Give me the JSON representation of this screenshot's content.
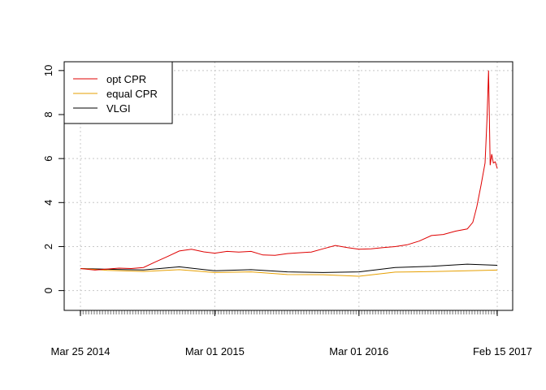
{
  "chart_data": {
    "type": "line",
    "title": "",
    "xlabel": "",
    "ylabel": "",
    "ylim": [
      -0.9,
      10.4
    ],
    "y_ticks": [
      0,
      2,
      4,
      6,
      8,
      10
    ],
    "x_date_range": [
      "2014-03-25",
      "2017-02-15"
    ],
    "x_tick_labels": [
      {
        "date": "2014-03-25",
        "label": "Mar 25 2014"
      },
      {
        "date": "2015-03-01",
        "label": "Mar 01 2015"
      },
      {
        "date": "2016-03-01",
        "label": "Mar 01 2016"
      },
      {
        "date": "2017-02-15",
        "label": "Feb 15 2017"
      }
    ],
    "grid": true,
    "legend_position": "top-left",
    "series": [
      {
        "name": "opt CPR",
        "color": "#DF0000",
        "points": [
          [
            "2014-03-25",
            1.0
          ],
          [
            "2014-05-01",
            0.93
          ],
          [
            "2014-06-01",
            0.98
          ],
          [
            "2014-07-01",
            1.02
          ],
          [
            "2014-08-01",
            1.0
          ],
          [
            "2014-09-01",
            1.05
          ],
          [
            "2014-10-01",
            1.3
          ],
          [
            "2014-11-01",
            1.55
          ],
          [
            "2014-12-01",
            1.8
          ],
          [
            "2015-01-01",
            1.88
          ],
          [
            "2015-02-01",
            1.76
          ],
          [
            "2015-03-01",
            1.7
          ],
          [
            "2015-04-01",
            1.78
          ],
          [
            "2015-05-01",
            1.75
          ],
          [
            "2015-06-01",
            1.78
          ],
          [
            "2015-07-01",
            1.62
          ],
          [
            "2015-08-01",
            1.6
          ],
          [
            "2015-09-01",
            1.68
          ],
          [
            "2015-10-01",
            1.72
          ],
          [
            "2015-11-01",
            1.75
          ],
          [
            "2015-12-01",
            1.9
          ],
          [
            "2016-01-01",
            2.05
          ],
          [
            "2016-02-01",
            1.95
          ],
          [
            "2016-03-01",
            1.88
          ],
          [
            "2016-04-01",
            1.9
          ],
          [
            "2016-05-01",
            1.95
          ],
          [
            "2016-06-01",
            2.0
          ],
          [
            "2016-07-01",
            2.08
          ],
          [
            "2016-08-01",
            2.25
          ],
          [
            "2016-09-01",
            2.5
          ],
          [
            "2016-10-01",
            2.55
          ],
          [
            "2016-11-01",
            2.7
          ],
          [
            "2016-12-01",
            2.8
          ],
          [
            "2016-12-15",
            3.1
          ],
          [
            "2016-12-25",
            3.8
          ],
          [
            "2017-01-05",
            4.8
          ],
          [
            "2017-01-15",
            5.8
          ],
          [
            "2017-01-20",
            7.8
          ],
          [
            "2017-01-24",
            10.0
          ],
          [
            "2017-01-28",
            5.7
          ],
          [
            "2017-02-01",
            6.2
          ],
          [
            "2017-02-05",
            5.8
          ],
          [
            "2017-02-10",
            5.85
          ],
          [
            "2017-02-15",
            5.55
          ]
        ]
      },
      {
        "name": "equal CPR",
        "color": "#E69F00",
        "points": [
          [
            "2014-03-25",
            1.0
          ],
          [
            "2014-06-01",
            0.92
          ],
          [
            "2014-09-01",
            0.87
          ],
          [
            "2014-12-01",
            0.95
          ],
          [
            "2015-03-01",
            0.82
          ],
          [
            "2015-06-01",
            0.85
          ],
          [
            "2015-09-01",
            0.73
          ],
          [
            "2015-12-01",
            0.72
          ],
          [
            "2016-03-01",
            0.65
          ],
          [
            "2016-06-01",
            0.84
          ],
          [
            "2016-09-01",
            0.86
          ],
          [
            "2016-12-01",
            0.9
          ],
          [
            "2017-02-15",
            0.93
          ]
        ]
      },
      {
        "name": "VLGI",
        "color": "#000000",
        "points": [
          [
            "2014-03-25",
            1.0
          ],
          [
            "2014-06-01",
            0.97
          ],
          [
            "2014-09-01",
            0.94
          ],
          [
            "2014-12-01",
            1.08
          ],
          [
            "2015-03-01",
            0.9
          ],
          [
            "2015-06-01",
            0.95
          ],
          [
            "2015-09-01",
            0.85
          ],
          [
            "2015-12-01",
            0.82
          ],
          [
            "2016-03-01",
            0.85
          ],
          [
            "2016-06-01",
            1.05
          ],
          [
            "2016-09-01",
            1.1
          ],
          [
            "2016-12-01",
            1.2
          ],
          [
            "2017-02-15",
            1.15
          ]
        ]
      }
    ]
  }
}
